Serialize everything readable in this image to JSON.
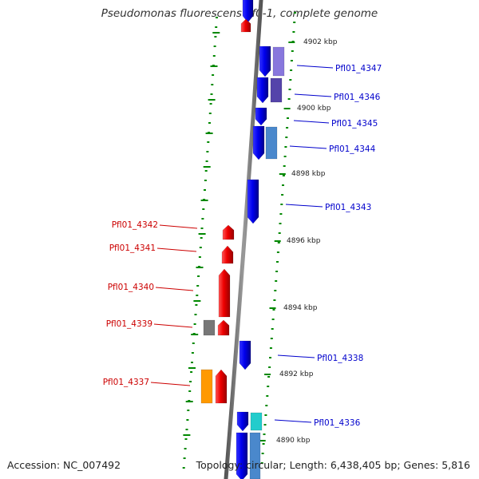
{
  "title": "Pseudomonas fluorescens Pf0-1, complete genome",
  "footer": {
    "accession": "Accession: NC_007492",
    "topology": "Topology: circular; Length: 6,438,405 bp; Genes: 5,816"
  },
  "colors": {
    "backbone": "#8a8a8a",
    "tick": "#008800",
    "forward_gene": "#0000ee",
    "reverse_gene": "#ee0000",
    "label_forward": "#0000cc",
    "label_reverse": "#cc0000"
  },
  "scale_labels": [
    "4902 kbp",
    "4900 kbp",
    "4898 kbp",
    "4896 kbp",
    "4894 kbp",
    "4892 kbp",
    "4890 kbp"
  ],
  "genes_forward": [
    {
      "tag": "Pfl01_4347",
      "color": "#0000ee",
      "cog": "#8877dd"
    },
    {
      "tag": "Pfl01_4346",
      "color": "#0000ee",
      "cog": "#5544aa"
    },
    {
      "tag": "Pfl01_4345",
      "color": "#0000ee"
    },
    {
      "tag": "Pfl01_4344",
      "color": "#0000ee",
      "cog": "#4a88cc"
    },
    {
      "tag": "Pfl01_4343",
      "color": "#0000ee"
    },
    {
      "tag": "Pfl01_4338",
      "color": "#0000ee"
    },
    {
      "tag": "Pfl01_4336",
      "color": "#0000ee",
      "cog": "#22cccc"
    }
  ],
  "genes_reverse": [
    {
      "tag": "Pfl01_4342",
      "color": "#ee0000"
    },
    {
      "tag": "Pfl01_4341",
      "color": "#ee0000"
    },
    {
      "tag": "Pfl01_4340",
      "color": "#ee0000"
    },
    {
      "tag": "Pfl01_4339",
      "color": "#ee0000",
      "cog": "#777777"
    },
    {
      "tag": "Pfl01_4337",
      "color": "#ee0000",
      "cog": "#ff9900"
    }
  ]
}
